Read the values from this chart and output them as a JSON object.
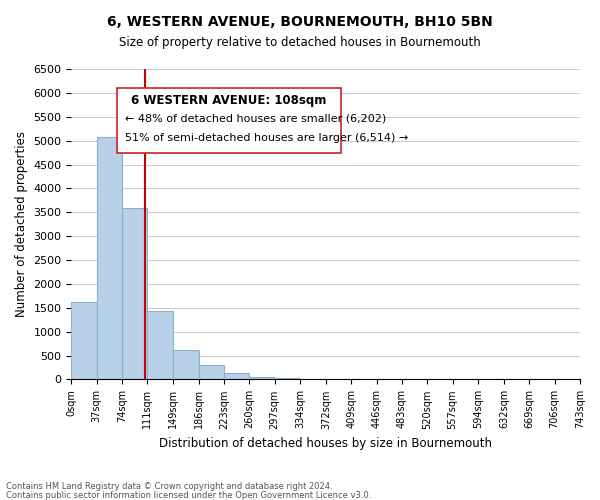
{
  "title": "6, WESTERN AVENUE, BOURNEMOUTH, BH10 5BN",
  "subtitle": "Size of property relative to detached houses in Bournemouth",
  "bar_heights": [
    1630,
    5080,
    3580,
    1430,
    610,
    300,
    145,
    55,
    30,
    0,
    0,
    0,
    0,
    0,
    0,
    0,
    0,
    0,
    0,
    0
  ],
  "bin_edges": [
    0,
    37,
    74,
    111,
    149,
    186,
    223,
    260,
    297,
    334,
    372,
    409,
    446,
    483,
    520,
    557,
    594,
    632,
    669,
    706,
    743
  ],
  "bin_labels": [
    "0sqm",
    "37sqm",
    "74sqm",
    "111sqm",
    "149sqm",
    "186sqm",
    "223sqm",
    "260sqm",
    "297sqm",
    "334sqm",
    "372sqm",
    "409sqm",
    "446sqm",
    "483sqm",
    "520sqm",
    "557sqm",
    "594sqm",
    "632sqm",
    "669sqm",
    "706sqm",
    "743sqm"
  ],
  "bar_color": "#b8d0e8",
  "bar_edge_color": "#8ab0d0",
  "vline_x": 108,
  "vline_color": "#cc0000",
  "ylim": [
    0,
    6500
  ],
  "ylabel": "Number of detached properties",
  "xlabel": "Distribution of detached houses by size in Bournemouth",
  "annotation_title": "6 WESTERN AVENUE: 108sqm",
  "annotation_line1": "← 48% of detached houses are smaller (6,202)",
  "annotation_line2": "51% of semi-detached houses are larger (6,514) →",
  "footer1": "Contains HM Land Registry data © Crown copyright and database right 2024.",
  "footer2": "Contains public sector information licensed under the Open Government Licence v3.0.",
  "background_color": "#ffffff",
  "grid_color": "#cccccc"
}
